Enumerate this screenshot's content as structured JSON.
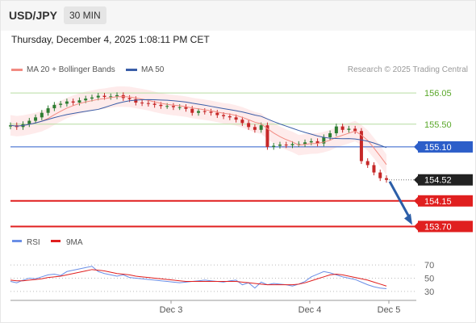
{
  "header": {
    "symbol": "USD/JPY",
    "timeframe": "30 MIN"
  },
  "datetime": "Thursday, December 4, 2025 1:08:11 PM CET",
  "legend": [
    {
      "label": "MA 20 + Bollinger Bands",
      "color": "#f28b82"
    },
    {
      "label": "MA 50",
      "color": "#3a5ea8"
    }
  ],
  "credit": "Research © 2025 Trading Central",
  "colors": {
    "ma20": "#f28b82",
    "ma50": "#3a5ea8",
    "band": "#fde2e2",
    "up": "#2e7d32",
    "down": "#c62828",
    "target_green": "#5aa82a",
    "pivot_blue": "#2c5ec9",
    "support_red": "#e01f1f",
    "rsi": "#6a8ee6",
    "rsi_ma": "#e01f1f"
  },
  "chart_data": [
    {
      "type": "candlestick",
      "title": "USD/JPY 30 MIN",
      "x_ticks": [
        "Dec 3",
        "Dec 4",
        "Dec 5"
      ],
      "ylim": [
        153.55,
        156.25
      ],
      "close_series": [
        155.48,
        155.45,
        155.5,
        155.56,
        155.62,
        155.7,
        155.78,
        155.84,
        155.86,
        155.9,
        155.88,
        155.92,
        155.95,
        155.97,
        156.0,
        155.98,
        155.99,
        156.01,
        155.96,
        155.94,
        155.88,
        155.87,
        155.86,
        155.84,
        155.82,
        155.82,
        155.8,
        155.8,
        155.77,
        155.7,
        155.73,
        155.72,
        155.7,
        155.66,
        155.64,
        155.62,
        155.58,
        155.52,
        155.45,
        155.4,
        155.48,
        155.1,
        155.12,
        155.14,
        155.13,
        155.15,
        155.15,
        155.18,
        155.2,
        155.16,
        155.27,
        155.34,
        155.46,
        155.4,
        155.42,
        155.38,
        154.85,
        154.78,
        154.65,
        154.55,
        154.52
      ],
      "levels": [
        {
          "value": 156.05,
          "label": "156.05",
          "kind": "target"
        },
        {
          "value": 155.5,
          "label": "155.50",
          "kind": "target"
        },
        {
          "value": 155.1,
          "label": "155.10",
          "kind": "pivot"
        },
        {
          "value": 154.52,
          "label": "154.52",
          "kind": "last"
        },
        {
          "value": 154.15,
          "label": "154.15",
          "kind": "support"
        },
        {
          "value": 153.7,
          "label": "153.70",
          "kind": "support"
        }
      ],
      "projection": {
        "from": 154.52,
        "to": 153.7
      }
    },
    {
      "type": "line",
      "title": "RSI",
      "series": [
        {
          "name": "RSI",
          "values": [
            45,
            43,
            47,
            50,
            49,
            52,
            55,
            56,
            54,
            60,
            62,
            64,
            66,
            68,
            60,
            57,
            55,
            53,
            55,
            51,
            50,
            49,
            48,
            47,
            46,
            45,
            44,
            43,
            44,
            45,
            46,
            47,
            46,
            45,
            44,
            46,
            47,
            40,
            43,
            35,
            44,
            40,
            42,
            41,
            40,
            38,
            41,
            45,
            52,
            56,
            60,
            58,
            55,
            52,
            50,
            48,
            44,
            40,
            37,
            35,
            34
          ]
        },
        {
          "name": "9MA",
          "values": [
            47,
            46,
            46,
            47,
            48,
            49,
            51,
            52,
            53,
            55,
            57,
            59,
            61,
            63,
            62,
            61,
            59,
            57,
            56,
            55,
            53,
            52,
            51,
            50,
            49,
            48,
            47,
            46,
            45,
            45,
            45,
            45,
            45,
            45,
            45,
            45,
            45,
            44,
            43,
            42,
            41,
            40,
            40,
            40,
            40,
            40,
            41,
            43,
            46,
            49,
            52,
            55,
            56,
            55,
            53,
            51,
            49,
            47,
            44,
            41,
            38
          ]
        }
      ],
      "y_ticks": [
        70,
        50,
        30
      ],
      "ylim": [
        20,
        75
      ]
    }
  ]
}
